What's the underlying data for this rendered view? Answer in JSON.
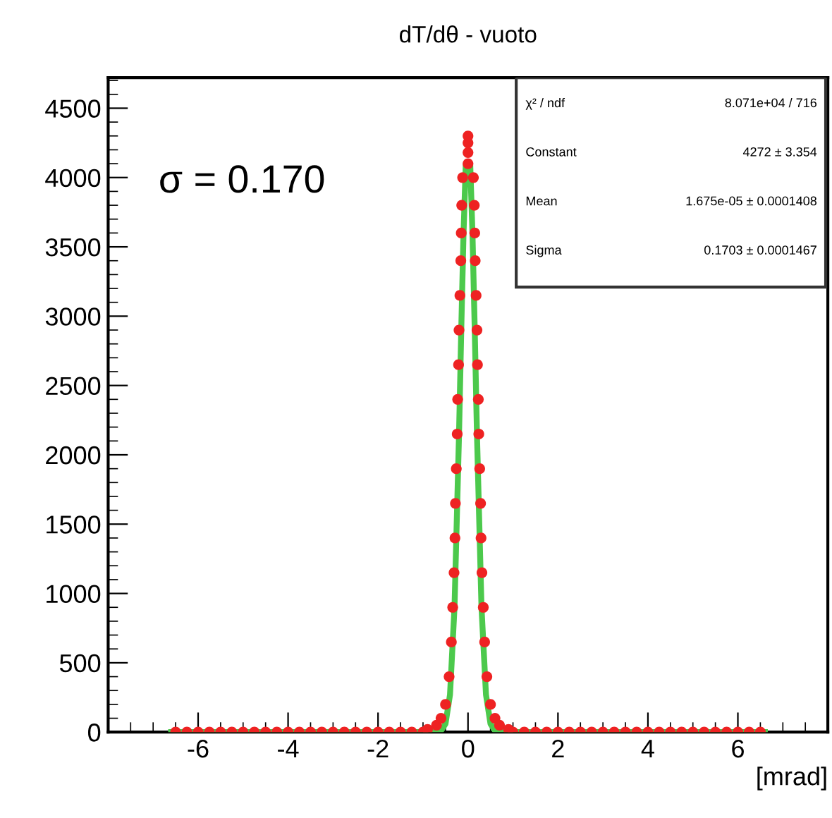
{
  "chart_data": {
    "type": "scatter",
    "title": "dT/dθ - vuoto",
    "xlabel": "[mrad]",
    "xlim": [
      -8,
      8
    ],
    "xticks": [
      -6,
      -4,
      -2,
      0,
      2,
      4,
      6
    ],
    "ylim": [
      0,
      4720
    ],
    "yticks": [
      0,
      500,
      1000,
      1500,
      2000,
      2500,
      3000,
      3500,
      4000,
      4500
    ],
    "grid": false,
    "legend": false,
    "annotations": [
      "σ = 0.170",
      "χ² / ndf",
      "8.071e+04 / 716",
      "Constant",
      "4272 ± 3.354",
      "Mean",
      "1.675e-05 ± 0.0001408",
      "Sigma",
      "0.1703 ± 0.0001467"
    ],
    "series": [
      {
        "marker": "circle",
        "color": "#ee2222",
        "x": [
          -6.5,
          -6.25,
          -6.0,
          -5.75,
          -5.5,
          -5.25,
          -5.0,
          -4.75,
          -4.5,
          -4.25,
          -4.0,
          -3.75,
          -3.5,
          -3.25,
          -3.0,
          -2.75,
          -2.5,
          -2.25,
          -2.0,
          -1.75,
          -1.5,
          -1.25,
          -1.0,
          -0.9,
          -0.7,
          -0.6,
          -0.5,
          -0.42,
          -0.37,
          -0.34,
          -0.31,
          -0.29,
          -0.28,
          -0.26,
          -0.24,
          -0.23,
          -0.21,
          -0.2,
          -0.18,
          -0.16,
          -0.15,
          -0.14,
          -0.12,
          0.0,
          0.0,
          0.0,
          0.0,
          0.12,
          0.14,
          0.15,
          0.16,
          0.18,
          0.2,
          0.21,
          0.23,
          0.24,
          0.26,
          0.28,
          0.29,
          0.31,
          0.34,
          0.37,
          0.42,
          0.5,
          0.6,
          0.7,
          0.9,
          1.0,
          1.25,
          1.5,
          1.75,
          2.0,
          2.25,
          2.5,
          2.75,
          3.0,
          3.25,
          3.5,
          3.75,
          4.0,
          4.25,
          4.5,
          4.75,
          5.0,
          5.25,
          5.5,
          5.75,
          6.0,
          6.25,
          6.5
        ],
        "values": [
          0,
          0,
          0,
          0,
          0,
          0,
          0,
          0,
          0,
          0,
          0,
          0,
          0,
          0,
          0,
          0,
          0,
          0,
          0,
          0,
          0,
          0,
          0,
          20,
          50,
          100,
          200,
          400,
          650,
          900,
          1150,
          1400,
          1650,
          1900,
          2150,
          2400,
          2650,
          2900,
          3150,
          3400,
          3600,
          3800,
          4000,
          4100,
          4180,
          4250,
          4300,
          4000,
          3800,
          3600,
          3400,
          3150,
          2900,
          2650,
          2400,
          2150,
          1900,
          1650,
          1400,
          1150,
          900,
          650,
          400,
          200,
          100,
          50,
          20,
          0,
          0,
          0,
          0,
          0,
          0,
          0,
          0,
          0,
          0,
          0,
          0,
          0,
          0,
          0,
          0,
          0,
          0,
          0,
          0,
          0,
          0,
          0
        ]
      },
      {
        "type": "line",
        "color": "#4cc94c",
        "x": [
          -6.6,
          -1.0,
          -0.6,
          -0.5,
          -0.4,
          -0.3,
          -0.2,
          -0.15,
          -0.1,
          -0.05,
          0.05,
          0.1,
          0.15,
          0.2,
          0.3,
          0.4,
          0.5,
          0.6,
          1.0,
          6.6
        ],
        "values": [
          0,
          0,
          10,
          60,
          270,
          900,
          2140,
          2900,
          3590,
          4090,
          4090,
          3590,
          2900,
          2140,
          900,
          270,
          60,
          10,
          0,
          0
        ]
      }
    ]
  }
}
